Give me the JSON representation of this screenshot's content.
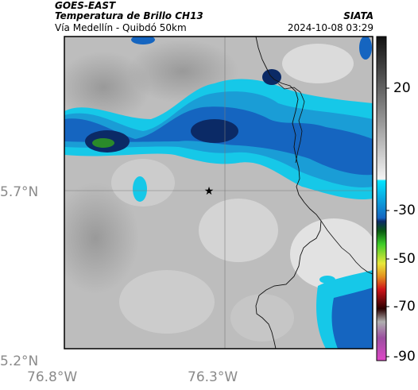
{
  "header": {
    "source": "GOES-EAST",
    "product": "Temperatura de Brillo CH13",
    "route": "Vía Medellín - Quibdó 50km",
    "org": "SIATA",
    "datetime": "2024-10-08 03:29"
  },
  "axes": {
    "y_ticks": [
      "5.7°N",
      "5.2°N"
    ],
    "x_ticks": [
      "76.8°W",
      "76.3°W"
    ]
  },
  "colorbar": {
    "ticks": [
      "20",
      "-30",
      "-50",
      "-70",
      "-90"
    ]
  },
  "marker": {
    "name": "star",
    "color": "#000000"
  }
}
